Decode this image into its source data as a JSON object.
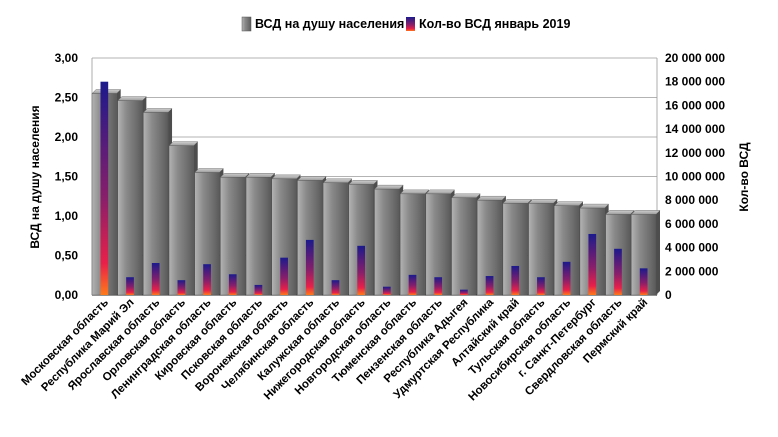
{
  "chart_data": {
    "type": "bar",
    "categories": [
      "Московская область",
      "Республика Марий Эл",
      "Ярославская область",
      "Орловская область",
      "Ленинградская область",
      "Кировская область",
      "Псковская область",
      "Воронежская область",
      "Челябинская область",
      "Калужская область",
      "Нижегородская область",
      "Новгородская область",
      "Тюменская область",
      "Пензенская область",
      "Республика Адыгея",
      "Удмуртская Республика",
      "Алтайский край",
      "Тульская область",
      "Новосибирская область",
      "г. Санкт-Петербург",
      "Свердловская область",
      "Пермский край"
    ],
    "series": [
      {
        "name": "ВСД на душу населения",
        "axis": "left",
        "color": "#7f7f7f",
        "values": [
          2.55,
          2.46,
          2.31,
          1.89,
          1.55,
          1.49,
          1.49,
          1.47,
          1.45,
          1.42,
          1.4,
          1.34,
          1.28,
          1.28,
          1.23,
          1.2,
          1.16,
          1.16,
          1.13,
          1.1,
          1.02,
          1.02
        ]
      },
      {
        "name": "Кол-во ВСД январь 2019",
        "axis": "right",
        "color": "#3a1d8c",
        "values": [
          18000000,
          1500000,
          2700000,
          1250000,
          2600000,
          1750000,
          850000,
          3150000,
          4650000,
          1250000,
          4150000,
          700000,
          1700000,
          1500000,
          450000,
          1600000,
          2450000,
          1500000,
          2800000,
          5150000,
          3900000,
          2250000
        ]
      }
    ],
    "ylabel": "ВСД на душу населения",
    "y2label": "Кол-во ВСД",
    "ylim": [
      0,
      3
    ],
    "y2lim": [
      0,
      20000000
    ],
    "yticks": [
      "0,00",
      "0,50",
      "1,00",
      "1,50",
      "2,00",
      "2,50",
      "3,00"
    ],
    "y2ticks": [
      "0",
      "2 000 000",
      "4 000 000",
      "6 000 000",
      "8 000 000",
      "10 000 000",
      "12 000 000",
      "14 000 000",
      "16 000 000",
      "18 000 000",
      "20 000 000"
    ],
    "grid": true,
    "legend": "top-center"
  }
}
